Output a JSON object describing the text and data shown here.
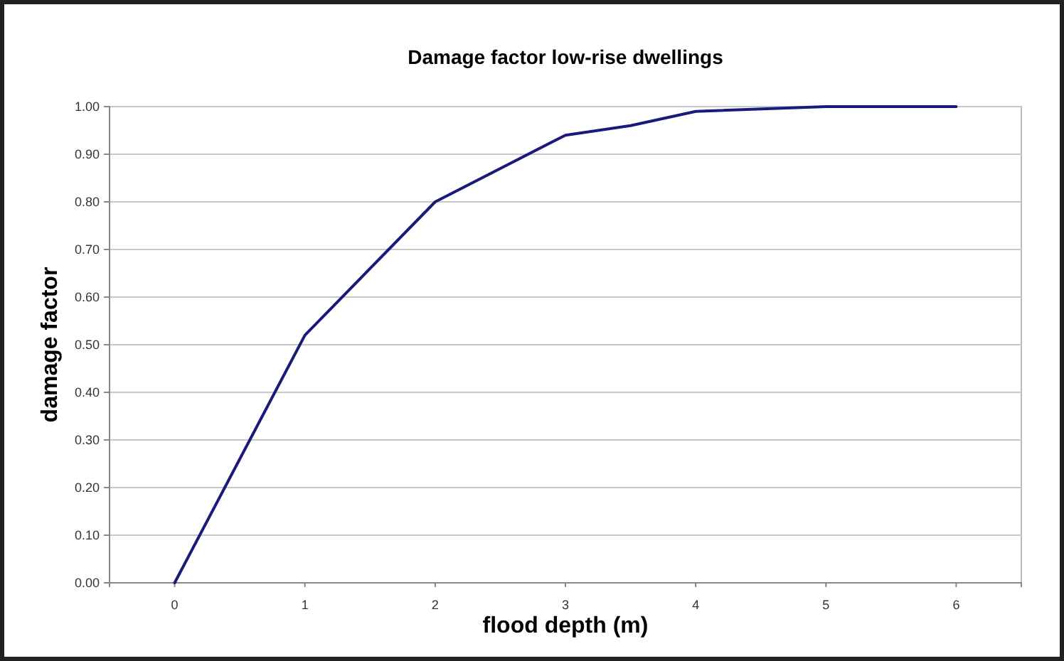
{
  "chart_data": {
    "type": "line",
    "title": "Damage factor low-rise dwellings",
    "xlabel": "flood depth (m)",
    "ylabel": "damage factor",
    "x": [
      0,
      1,
      2,
      3,
      3.5,
      4,
      5,
      6
    ],
    "series": [
      {
        "color": "#1a1a7a",
        "values": [
          0,
          0.52,
          0.8,
          0.94,
          0.96,
          0.99,
          1.0,
          1.0
        ]
      }
    ],
    "xlim": [
      -0.5,
      6.5
    ],
    "xticks": [
      0,
      1,
      2,
      3,
      4,
      5,
      6
    ],
    "ylim": [
      0,
      1
    ],
    "yticks": [
      {
        "value": 0,
        "label": "0.00"
      },
      {
        "value": 0.1,
        "label": "0.10"
      },
      {
        "value": 0.2,
        "label": "0.20"
      },
      {
        "value": 0.3,
        "label": "0.30"
      },
      {
        "value": 0.4,
        "label": "0.40"
      },
      {
        "value": 0.5,
        "label": "0.50"
      },
      {
        "value": 0.6,
        "label": "0.60"
      },
      {
        "value": 0.7,
        "label": "0.70"
      },
      {
        "value": 0.8,
        "label": "0.80"
      },
      {
        "value": 0.9,
        "label": "0.90"
      },
      {
        "value": 1,
        "label": "1.00"
      }
    ],
    "grid": "y",
    "marker": "none",
    "line_style": "solid"
  }
}
